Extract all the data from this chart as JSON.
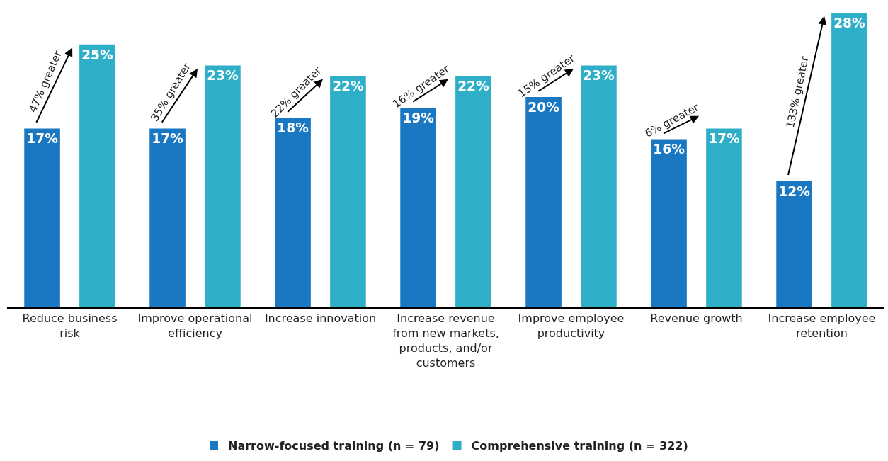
{
  "chart_data": {
    "type": "bar",
    "categories": [
      "Reduce business risk",
      "Improve operational efficiency",
      "Increase innovation",
      "Increase revenue from new markets, products, and/or customers",
      "Improve employee productivity",
      "Revenue growth",
      "Increase employee retention"
    ],
    "series": [
      {
        "name": "Narrow-focused training (n = 79)",
        "color": "#1a78c2",
        "values": [
          17,
          17,
          18,
          19,
          20,
          16,
          12
        ],
        "value_labels": [
          "17%",
          "17%",
          "18%",
          "19%",
          "20%",
          "16%",
          "12%"
        ]
      },
      {
        "name": "Comprehensive training (n = 322)",
        "color": "#2eafc7",
        "values": [
          25,
          23,
          22,
          22,
          23,
          17,
          28
        ],
        "value_labels": [
          "25%",
          "23%",
          "22%",
          "22%",
          "23%",
          "17%",
          "28%"
        ]
      }
    ],
    "annotations": [
      "47% greater",
      "35% greater",
      "22% greater",
      "16% greater",
      "15% greater",
      "6% greater",
      "133% greater"
    ],
    "legend": "bottom"
  }
}
